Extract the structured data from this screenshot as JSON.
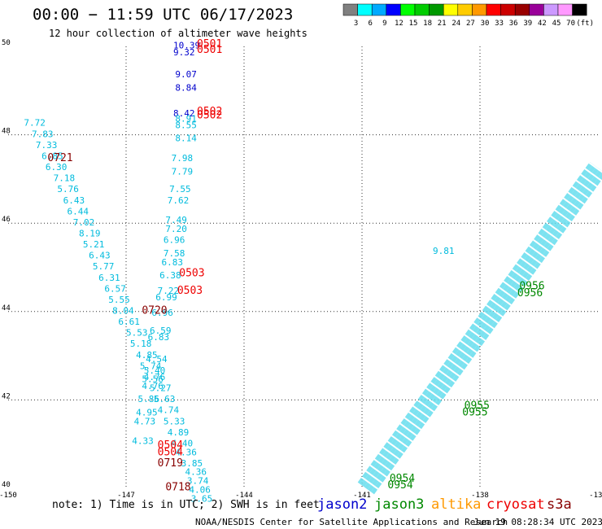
{
  "header": {
    "title": "00:00 − 11:59 UTC 06/17/2023",
    "subtitle": "12 hour collection of altimeter wave heights"
  },
  "colorbar": {
    "colors": [
      "#808080",
      "#00ffff",
      "#00aaff",
      "#0000ff",
      "#00ff00",
      "#00cc00",
      "#009900",
      "#ffff00",
      "#ffcc00",
      "#ff9900",
      "#ff0000",
      "#cc0000",
      "#990000",
      "#990099",
      "#cc99ff",
      "#ff99ff",
      "#000000"
    ],
    "ticks": [
      "3",
      "6",
      "9",
      "12",
      "15",
      "18",
      "21",
      "24",
      "27",
      "30",
      "33",
      "36",
      "39",
      "42",
      "45",
      "70",
      "(ft)"
    ]
  },
  "footer": {
    "note": "note: 1) Time is in UTC; 2) SWH is in feet",
    "credit": "NOAA/NESDIS Center for Satellite Applications and Research",
    "timestamp": "Jun 19 08:28:34 UTC 2023"
  },
  "satellites": [
    {
      "name": "jason2",
      "color": "#0000cc"
    },
    {
      "name": "jason3",
      "color": "#008800"
    },
    {
      "name": "altika",
      "color": "#ff9900"
    },
    {
      "name": "cryosat",
      "color": "#ee0000"
    },
    {
      "name": "s3a",
      "color": "#880000"
    }
  ],
  "chart_data": {
    "type": "scatter",
    "xlim": [
      -150,
      -135
    ],
    "ylim": [
      40,
      50
    ],
    "x_ticks": [
      "-150",
      "-147",
      "-144",
      "-141",
      "-138",
      "-135"
    ],
    "y_ticks": [
      "40",
      "42",
      "44",
      "46",
      "48",
      "50"
    ],
    "grid": true,
    "series": [
      {
        "name": "jason2",
        "color": "#0000cc",
        "points": [
          {
            "x": -145.8,
            "y": 49.95,
            "label": "10.39"
          },
          {
            "x": -145.8,
            "y": 49.8,
            "label": "9.32"
          },
          {
            "x": -145.75,
            "y": 49.3,
            "label": "9.07"
          },
          {
            "x": -145.75,
            "y": 49.0,
            "label": "8.84"
          },
          {
            "x": -145.8,
            "y": 48.42,
            "label": "8.42"
          }
        ]
      },
      {
        "name": "along-track",
        "color": "#00bbdd",
        "points": [
          {
            "x": -149.6,
            "y": 48.2,
            "label": "7.72"
          },
          {
            "x": -149.4,
            "y": 47.95,
            "label": "7.83"
          },
          {
            "x": -149.3,
            "y": 47.7,
            "label": "7.33"
          },
          {
            "x": -149.15,
            "y": 47.45,
            "label": "6.85"
          },
          {
            "x": -149.05,
            "y": 47.2,
            "label": "6.30"
          },
          {
            "x": -148.85,
            "y": 46.95,
            "label": "7.18"
          },
          {
            "x": -148.75,
            "y": 46.7,
            "label": "5.76"
          },
          {
            "x": -148.6,
            "y": 46.45,
            "label": "6.43"
          },
          {
            "x": -148.5,
            "y": 46.2,
            "label": "6.44"
          },
          {
            "x": -148.35,
            "y": 45.95,
            "label": "7.02"
          },
          {
            "x": -148.2,
            "y": 45.7,
            "label": "8.19"
          },
          {
            "x": -148.1,
            "y": 45.45,
            "label": "5.21"
          },
          {
            "x": -147.95,
            "y": 45.2,
            "label": "6.43"
          },
          {
            "x": -147.85,
            "y": 44.95,
            "label": "5.77"
          },
          {
            "x": -147.7,
            "y": 44.7,
            "label": "6.31"
          },
          {
            "x": -147.55,
            "y": 44.45,
            "label": "6.57"
          },
          {
            "x": -147.45,
            "y": 44.2,
            "label": "5.55"
          },
          {
            "x": -147.35,
            "y": 43.95,
            "label": "8.04"
          },
          {
            "x": -147.2,
            "y": 43.7,
            "label": "6.61"
          },
          {
            "x": -147.0,
            "y": 43.45,
            "label": "5.53"
          },
          {
            "x": -146.9,
            "y": 43.2,
            "label": "5.18"
          },
          {
            "x": -146.75,
            "y": 42.95,
            "label": "4.85"
          },
          {
            "x": -146.65,
            "y": 42.7,
            "label": "5.74"
          },
          {
            "x": -146.55,
            "y": 42.45,
            "label": "4.76"
          },
          {
            "x": -146.4,
            "y": 42.2,
            "label": "5.27"
          },
          {
            "x": -146.3,
            "y": 41.95,
            "label": "5.63"
          },
          {
            "x": -146.2,
            "y": 41.7,
            "label": "4.74"
          },
          {
            "x": -146.05,
            "y": 41.45,
            "label": "5.33"
          },
          {
            "x": -145.95,
            "y": 41.2,
            "label": "4.89"
          },
          {
            "x": -145.85,
            "y": 40.95,
            "label": "4.40"
          },
          {
            "x": -145.75,
            "y": 40.75,
            "label": "4.36"
          },
          {
            "x": -145.6,
            "y": 40.5,
            "label": "3.85"
          },
          {
            "x": -145.5,
            "y": 40.3,
            "label": "4.36"
          },
          {
            "x": -145.45,
            "y": 40.1,
            "label": "3.74"
          },
          {
            "x": -145.4,
            "y": 39.9,
            "label": "4.06"
          },
          {
            "x": -145.35,
            "y": 39.7,
            "label": "3.65"
          },
          {
            "x": -145.75,
            "y": 48.3,
            "label": "8.91"
          },
          {
            "x": -145.75,
            "y": 48.15,
            "label": "8.55"
          },
          {
            "x": -145.75,
            "y": 47.85,
            "label": "8.14"
          },
          {
            "x": -145.85,
            "y": 47.4,
            "label": "7.98"
          },
          {
            "x": -145.85,
            "y": 47.1,
            "label": "7.79"
          },
          {
            "x": -145.9,
            "y": 46.7,
            "label": "7.55"
          },
          {
            "x": -145.95,
            "y": 46.45,
            "label": "7.62"
          },
          {
            "x": -146.0,
            "y": 46.0,
            "label": "7.49"
          },
          {
            "x": -146.0,
            "y": 45.8,
            "label": "7.20"
          },
          {
            "x": -146.05,
            "y": 45.55,
            "label": "6.96"
          },
          {
            "x": -146.05,
            "y": 45.25,
            "label": "7.58"
          },
          {
            "x": -146.1,
            "y": 45.05,
            "label": "6.83"
          },
          {
            "x": -146.15,
            "y": 44.75,
            "label": "6.38"
          },
          {
            "x": -146.2,
            "y": 44.4,
            "label": "7.22"
          },
          {
            "x": -146.25,
            "y": 44.25,
            "label": "6.99"
          },
          {
            "x": -146.35,
            "y": 43.9,
            "label": "6.96"
          },
          {
            "x": -146.4,
            "y": 43.5,
            "label": "6.59"
          },
          {
            "x": -146.45,
            "y": 43.35,
            "label": "6.83"
          },
          {
            "x": -146.5,
            "y": 42.85,
            "label": "4.54"
          },
          {
            "x": -146.55,
            "y": 42.6,
            "label": "5.40"
          },
          {
            "x": -146.6,
            "y": 42.4,
            "label": "5.56"
          },
          {
            "x": -146.6,
            "y": 42.25,
            "label": "4.76"
          },
          {
            "x": -146.7,
            "y": 41.95,
            "label": "5.86"
          },
          {
            "x": -146.75,
            "y": 41.65,
            "label": "4.95"
          },
          {
            "x": -146.8,
            "y": 41.45,
            "label": "4.73"
          },
          {
            "x": -146.85,
            "y": 41.0,
            "label": "4.33"
          },
          {
            "x": -139.2,
            "y": 45.3,
            "label": "9.81"
          }
        ]
      }
    ],
    "time_labels": [
      {
        "x": -145.2,
        "y": 49.98,
        "label": "0501",
        "color": "#ee0000"
      },
      {
        "x": -145.2,
        "y": 49.85,
        "label": "0501",
        "color": "#ee0000"
      },
      {
        "x": -145.2,
        "y": 48.45,
        "label": "0502",
        "color": "#ee0000"
      },
      {
        "x": -145.2,
        "y": 48.37,
        "label": "0502",
        "color": "#ee0000"
      },
      {
        "x": -145.65,
        "y": 44.8,
        "label": "0503",
        "color": "#ee0000"
      },
      {
        "x": -145.7,
        "y": 44.4,
        "label": "0503",
        "color": "#ee0000"
      },
      {
        "x": -146.2,
        "y": 40.9,
        "label": "0504",
        "color": "#ee0000"
      },
      {
        "x": -146.2,
        "y": 40.75,
        "label": "0504",
        "color": "#ee0000"
      },
      {
        "x": -149.0,
        "y": 47.4,
        "label": "0721",
        "color": "#880000"
      },
      {
        "x": -146.6,
        "y": 43.95,
        "label": "0720",
        "color": "#880000"
      },
      {
        "x": -146.2,
        "y": 40.5,
        "label": "0719",
        "color": "#880000"
      },
      {
        "x": -146.0,
        "y": 39.95,
        "label": "0718",
        "color": "#880000"
      },
      {
        "x": -137.0,
        "y": 44.5,
        "label": "0956",
        "color": "#008800"
      },
      {
        "x": -137.05,
        "y": 44.35,
        "label": "0956",
        "color": "#008800"
      },
      {
        "x": -138.4,
        "y": 41.8,
        "label": "0955",
        "color": "#008800"
      },
      {
        "x": -138.45,
        "y": 41.65,
        "label": "0955",
        "color": "#008800"
      },
      {
        "x": -140.3,
        "y": 40.15,
        "label": "0954",
        "color": "#008800"
      },
      {
        "x": -140.35,
        "y": 40.0,
        "label": "0954",
        "color": "#008800"
      }
    ],
    "swath": {
      "color": "#66ddee",
      "from": {
        "x": -140.9,
        "y": 40.0
      },
      "to": {
        "x": -135.0,
        "y": 47.25
      }
    }
  }
}
